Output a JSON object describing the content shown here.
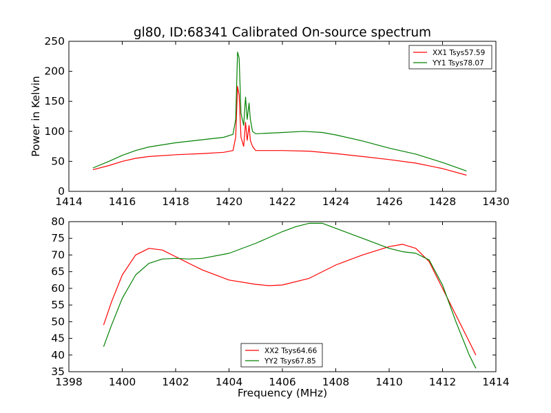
{
  "chart_data": [
    {
      "type": "line",
      "title": "gl80, ID:68341 Calibrated On-source spectrum",
      "xlabel": "",
      "ylabel": "Power in Kelvin",
      "xlim": [
        1414,
        1430
      ],
      "ylim": [
        0,
        250
      ],
      "xticks": [
        1414,
        1416,
        1418,
        1420,
        1422,
        1424,
        1426,
        1428,
        1430
      ],
      "yticks": [
        0,
        50,
        100,
        150,
        200,
        250
      ],
      "legend_position": "upper right",
      "series": [
        {
          "name": "XX1 Tsys57.59",
          "color": "#ff0000",
          "x": [
            1414.9,
            1415.5,
            1416.0,
            1416.5,
            1417.0,
            1418.0,
            1419.0,
            1419.8,
            1420.15,
            1420.25,
            1420.32,
            1420.38,
            1420.45,
            1420.55,
            1420.62,
            1420.68,
            1420.75,
            1420.8,
            1420.88,
            1421.0,
            1422.0,
            1423.0,
            1424.0,
            1425.0,
            1426.0,
            1427.0,
            1428.0,
            1428.9
          ],
          "y": [
            36,
            43,
            50,
            55,
            58,
            61,
            63,
            65,
            68,
            90,
            175,
            160,
            90,
            75,
            115,
            85,
            110,
            85,
            75,
            68,
            68,
            67,
            63,
            58,
            53,
            47,
            38,
            27
          ]
        },
        {
          "name": "YY1 Tsys78.07",
          "color": "#008000",
          "x": [
            1414.9,
            1415.5,
            1416.0,
            1416.5,
            1417.0,
            1418.0,
            1419.0,
            1419.8,
            1420.15,
            1420.25,
            1420.32,
            1420.38,
            1420.45,
            1420.55,
            1420.62,
            1420.68,
            1420.75,
            1420.8,
            1420.88,
            1421.0,
            1422.0,
            1422.8,
            1423.5,
            1424.0,
            1425.0,
            1426.0,
            1427.0,
            1428.0,
            1428.9
          ],
          "y": [
            39,
            50,
            60,
            68,
            74,
            81,
            86,
            90,
            95,
            120,
            232,
            222,
            130,
            110,
            157,
            120,
            147,
            120,
            100,
            96,
            98,
            100,
            98,
            94,
            84,
            72,
            62,
            48,
            34
          ]
        }
      ]
    },
    {
      "type": "line",
      "title": "",
      "xlabel": "Frequency (MHz)",
      "ylabel": "",
      "xlim": [
        1398,
        1414
      ],
      "ylim": [
        35,
        80
      ],
      "xticks": [
        1398,
        1400,
        1402,
        1404,
        1406,
        1408,
        1410,
        1412,
        1414
      ],
      "yticks": [
        35,
        40,
        45,
        50,
        55,
        60,
        65,
        70,
        75,
        80
      ],
      "legend_position": "lower center",
      "series": [
        {
          "name": "XX2 Tsys64.66",
          "color": "#ff0000",
          "x": [
            1399.3,
            1399.6,
            1400.0,
            1400.5,
            1401.0,
            1401.5,
            1402.0,
            1402.5,
            1403.0,
            1404.0,
            1405.0,
            1405.5,
            1406.0,
            1407.0,
            1408.0,
            1409.0,
            1410.0,
            1410.5,
            1411.0,
            1411.5,
            1412.0,
            1412.5,
            1413.0,
            1413.25
          ],
          "y": [
            49,
            56,
            64,
            70,
            72,
            71.5,
            69.5,
            67.5,
            65.5,
            62.5,
            61.2,
            60.8,
            61,
            63,
            67,
            70,
            72.5,
            73.2,
            72,
            68,
            60,
            52,
            44,
            40
          ]
        },
        {
          "name": "YY2 Tsys67.85",
          "color": "#008000",
          "x": [
            1399.3,
            1399.6,
            1400.0,
            1400.5,
            1401.0,
            1401.5,
            1402.0,
            1402.5,
            1403.0,
            1404.0,
            1405.0,
            1406.0,
            1406.5,
            1407.0,
            1407.5,
            1408.0,
            1409.0,
            1410.0,
            1410.5,
            1411.0,
            1411.5,
            1412.0,
            1412.5,
            1413.0,
            1413.25
          ],
          "y": [
            42.5,
            49,
            57,
            64,
            67.5,
            68.8,
            69,
            68.8,
            69,
            70.5,
            73.5,
            77,
            78.5,
            79.5,
            79.5,
            78,
            75,
            72,
            71,
            70.5,
            68.5,
            61,
            50,
            40,
            36
          ]
        }
      ]
    }
  ]
}
